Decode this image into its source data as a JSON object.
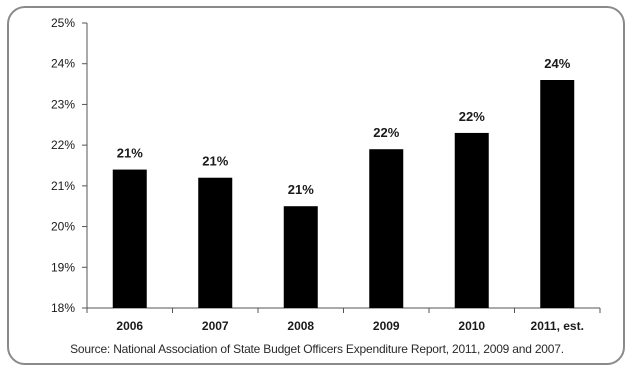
{
  "chart_data": {
    "type": "bar",
    "categories": [
      "2006",
      "2007",
      "2008",
      "2009",
      "2010",
      "2011, est."
    ],
    "values": [
      21.4,
      21.2,
      20.5,
      21.9,
      22.3,
      23.6
    ],
    "data_labels": [
      "21%",
      "21%",
      "21%",
      "22%",
      "22%",
      "24%"
    ],
    "ylim": [
      18,
      25
    ],
    "yticks": [
      18,
      19,
      20,
      21,
      22,
      23,
      24,
      25
    ],
    "ytick_labels": [
      "18%",
      "19%",
      "20%",
      "21%",
      "22%",
      "23%",
      "24%",
      "25%"
    ],
    "grid": false,
    "bar_color": "#000000",
    "title": "",
    "xlabel": "",
    "ylabel": ""
  },
  "source": "Source: National Association of State Budget Officers Expenditure Report, 2011, 2009 and 2007."
}
